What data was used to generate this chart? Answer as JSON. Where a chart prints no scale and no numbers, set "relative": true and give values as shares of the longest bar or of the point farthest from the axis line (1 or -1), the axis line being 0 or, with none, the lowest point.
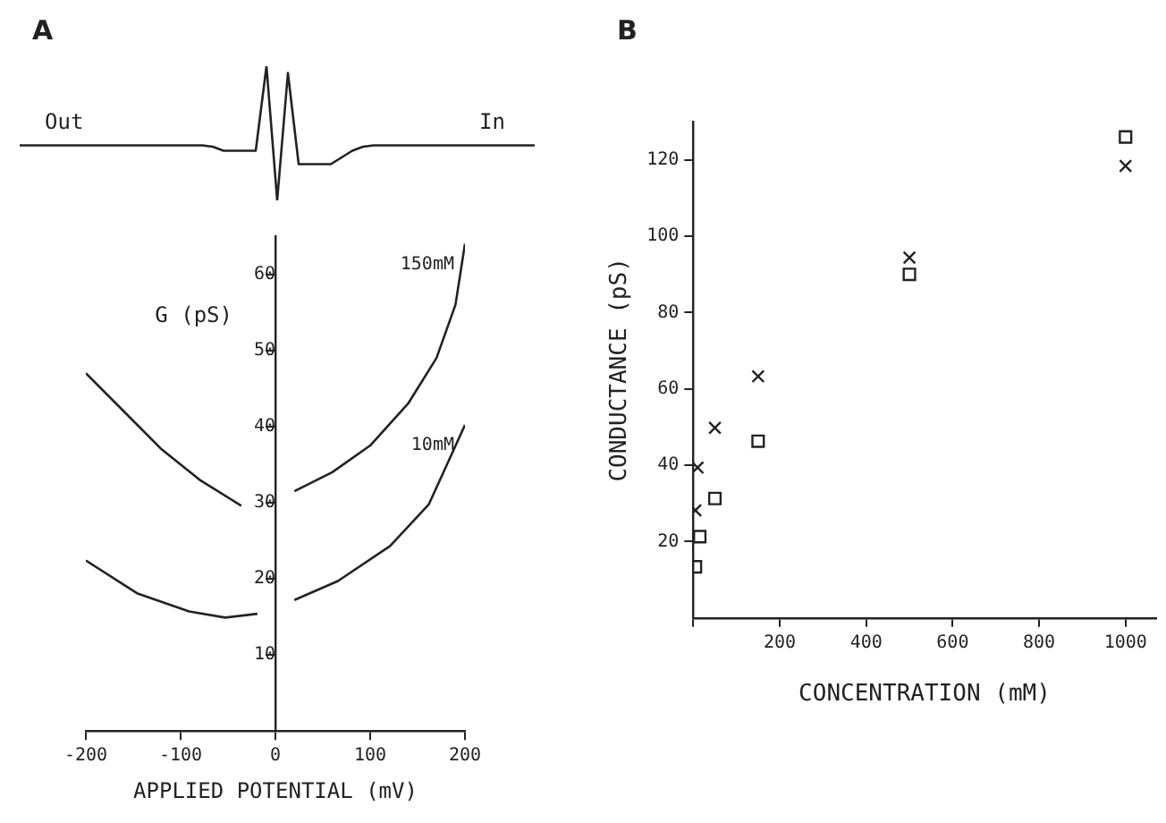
{
  "chart_data": [
    {
      "type": "line",
      "title": "A",
      "relative": true,
      "annotations": [
        "Out",
        "In"
      ],
      "grid": false,
      "legend": false,
      "marker": "none",
      "line_style": "solid",
      "categories": [
        null,
        null,
        null,
        null,
        null,
        null,
        null,
        null,
        null,
        null,
        null,
        null,
        null,
        null,
        null,
        null,
        null,
        null,
        null,
        null,
        null,
        null,
        null,
        null,
        null,
        null,
        null,
        null,
        null,
        null,
        null,
        null,
        null,
        null,
        null,
        null,
        null,
        null,
        null,
        null,
        null,
        null,
        null,
        null,
        null,
        null,
        null,
        null,
        null
      ],
      "series": [
        {
          "color": "#222222",
          "values": [
            0.41,
            0.41,
            0.41,
            0.41,
            0.41,
            0.41,
            0.41,
            0.41,
            0.41,
            0.41,
            0.41,
            0.41,
            0.41,
            0.41,
            0.41,
            0.41,
            0.41,
            0.41,
            0.4,
            0.37,
            0.37,
            0.37,
            0.37,
            1,
            0,
            0.95,
            0.27,
            0.27,
            0.27,
            0.27,
            0.32,
            0.37,
            0.4,
            0.41,
            0.41,
            0.41,
            0.41,
            0.41,
            0.41,
            0.41,
            0.41,
            0.41,
            0.41,
            0.41,
            0.41,
            0.41,
            0.41,
            0.41,
            0.41
          ]
        }
      ]
    },
    {
      "type": "line",
      "xlabel": "APPLIED POTENTIAL (mV)",
      "ylabel": "G (pS)",
      "xlim": [
        -200,
        200
      ],
      "ylim": [
        0,
        65
      ],
      "xticks": [
        -200,
        -100,
        0,
        100,
        200
      ],
      "yticks": [
        10,
        20,
        30,
        40,
        50,
        60
      ],
      "grid": false,
      "legend": false,
      "marker": "none",
      "line_style": "solid",
      "series": [
        {
          "color": "#222222",
          "x": [
            -200,
            -160,
            -120,
            -80,
            -36
          ],
          "values": [
            47,
            42,
            37,
            33,
            29.6
          ]
        },
        {
          "name": "150mM",
          "color": "#222222",
          "x": [
            20,
            60,
            100,
            140,
            170,
            190,
            200
          ],
          "values": [
            31.5,
            34,
            37.5,
            43,
            49,
            56,
            64
          ]
        },
        {
          "color": "#222222",
          "x": [
            -200,
            -146,
            -91,
            -53,
            -19
          ],
          "values": [
            22.4,
            18.1,
            15.7,
            14.9,
            15.4
          ]
        },
        {
          "name": "10mM",
          "color": "#222222",
          "x": [
            20,
            66,
            121,
            162,
            200
          ],
          "values": [
            17.2,
            19.7,
            24.3,
            29.8,
            40.2
          ]
        }
      ]
    },
    {
      "type": "scatter",
      "title": "B",
      "xlabel": "CONCENTRATION (mM)",
      "ylabel": "CONDUCTANCE (pS)",
      "xlim": [
        0,
        1070
      ],
      "ylim": [
        0,
        130
      ],
      "xticks": [
        {
          "value": 0,
          "label": null
        },
        200,
        400,
        600,
        800,
        1000
      ],
      "yticks": [
        20,
        40,
        60,
        80,
        100,
        120
      ],
      "grid": false,
      "legend": false,
      "series": [
        {
          "color": "#222222",
          "marker": "square",
          "x": [
            5,
            15,
            50,
            150,
            500,
            1000
          ],
          "values": [
            13.4,
            21.3,
            31.3,
            46.3,
            90,
            126
          ]
        },
        {
          "color": "#222222",
          "marker": "cross",
          "x": [
            5,
            10,
            50,
            150,
            500,
            1000
          ],
          "values": [
            28.2,
            39.4,
            49.8,
            63.3,
            94.4,
            118.4
          ]
        }
      ]
    }
  ]
}
